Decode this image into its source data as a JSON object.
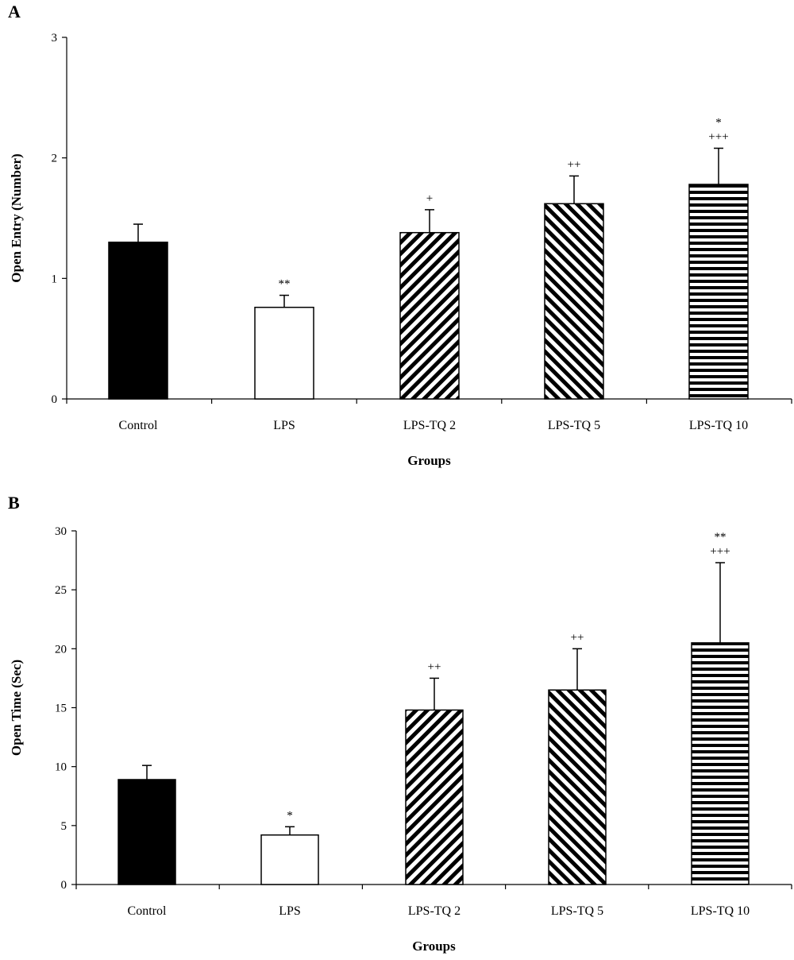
{
  "chart_data": [
    {
      "type": "bar",
      "panel": "A",
      "categories": [
        "Control",
        "LPS",
        "LPS-TQ 2",
        "LPS-TQ 5",
        "LPS-TQ 10"
      ],
      "values": [
        1.3,
        0.76,
        1.38,
        1.62,
        1.78
      ],
      "errors": [
        0.15,
        0.1,
        0.19,
        0.23,
        0.3
      ],
      "annotations": [
        [],
        [
          "**"
        ],
        [
          "+"
        ],
        [
          "++"
        ],
        [
          "*",
          "+++"
        ]
      ],
      "fills": [
        "solid-black",
        "white",
        "diagonal-forward",
        "diagonal-back",
        "horizontal-stripes"
      ],
      "xlabel": "Groups",
      "ylabel": "Open Entry (Number)",
      "ylim": [
        0,
        3
      ],
      "yticks": [
        0,
        1,
        2,
        3
      ],
      "grid": false
    },
    {
      "type": "bar",
      "panel": "B",
      "categories": [
        "Control",
        "LPS",
        "LPS-TQ 2",
        "LPS-TQ 5",
        "LPS-TQ 10"
      ],
      "values": [
        8.9,
        4.2,
        14.8,
        16.5,
        20.5
      ],
      "errors": [
        1.2,
        0.7,
        2.7,
        3.5,
        6.8
      ],
      "annotations": [
        [],
        [
          "*"
        ],
        [
          "++"
        ],
        [
          "++"
        ],
        [
          "**",
          "+++"
        ]
      ],
      "fills": [
        "solid-black",
        "white",
        "diagonal-forward",
        "diagonal-back",
        "horizontal-stripes"
      ],
      "xlabel": "Groups",
      "ylabel": "Open Time (Sec)",
      "ylim": [
        0,
        30
      ],
      "yticks": [
        0,
        5,
        10,
        15,
        20,
        25,
        30
      ],
      "grid": false
    }
  ]
}
